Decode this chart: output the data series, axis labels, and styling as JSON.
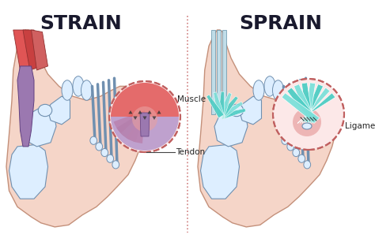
{
  "background_color": "#ffffff",
  "title_left": "STRAIN",
  "title_right": "SPRAIN",
  "title_fontsize": 18,
  "title_fontweight": "bold",
  "title_color": "#1a1a2e",
  "label_muscle": "Muscle",
  "label_tendon": "Tendon",
  "label_ligament": "Ligament",
  "label_fontsize": 7.5,
  "divider_color": "#d08080",
  "skin_fill": "#f5d5c8",
  "skin_edge": "#c4907a",
  "bone_fill": "#ddeeff",
  "bone_edge": "#7090b0",
  "muscle_color1": "#e05555",
  "muscle_color2": "#c84040",
  "muscle_color3": "#d06060",
  "tendon_color": "#9b78b0",
  "tendon_color2": "#b090c8",
  "ligament_color": "#4ecdc4",
  "ligament_color2": "#7de0da",
  "ligament_color3": "#2eb5ac",
  "circle_edge": "#c06060",
  "circle_bg_left": "#fce8e8",
  "circle_bg_right": "#fce8e8",
  "inflammation_color": "#e8a0a0"
}
